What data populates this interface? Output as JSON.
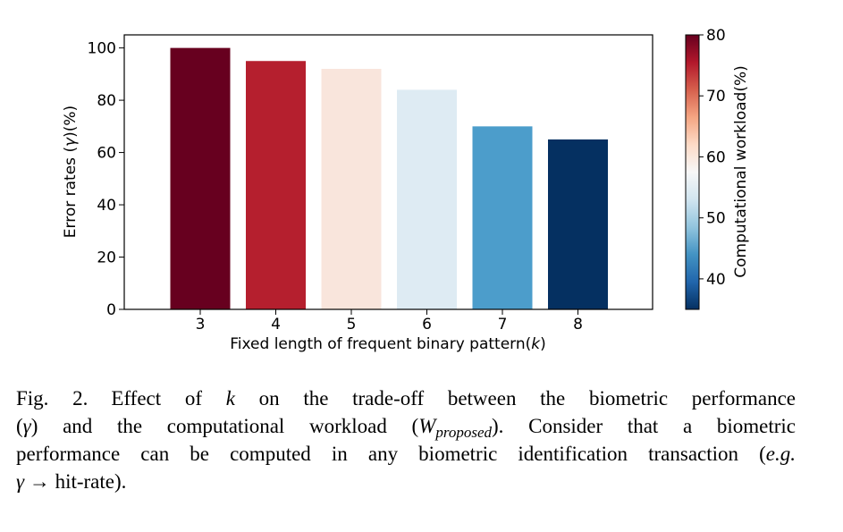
{
  "chart_data": {
    "type": "bar",
    "categories": [
      "3",
      "4",
      "5",
      "6",
      "7",
      "8"
    ],
    "values": [
      100,
      95,
      92,
      84,
      70,
      65
    ],
    "bar_colors": [
      "#67001f",
      "#b51f2e",
      "#f9e5dc",
      "#deebf3",
      "#4c9dcb",
      "#053061"
    ],
    "xlabel_prefix": "Fixed length of frequent binary pattern(",
    "xlabel_var": "k",
    "xlabel_suffix": ")",
    "ylabel_prefix": "Error rates (",
    "ylabel_var": "γ",
    "ylabel_suffix": ")(%)",
    "ylim": [
      0,
      105
    ],
    "yticks": [
      0,
      20,
      40,
      60,
      80,
      100
    ],
    "grid": false,
    "colorbar": {
      "label": "Computational workload(%)",
      "range": [
        35,
        80
      ],
      "ticks": [
        40,
        50,
        60,
        70,
        80
      ],
      "colormap": "RdBu_r",
      "colormap_stops": [
        "#053061",
        "#2166ac",
        "#4393c3",
        "#92c5de",
        "#d1e5f0",
        "#f7f7f7",
        "#fddbc7",
        "#f4a582",
        "#d6604d",
        "#b2182b",
        "#67001f"
      ]
    }
  },
  "caption": {
    "fig_label": "Fig. 2.",
    "l1_a": "Effect of ",
    "l1_k": "k",
    "l1_b": " on the trade-off between the biometric performance",
    "l2_a": "(",
    "l2_gamma": "γ",
    "l2_b": ") and the computational workload (",
    "l2_W": "W",
    "l2_sub": "proposed",
    "l2_c": "). Consider that a biometric",
    "l3_a": "performance can be computed in any biometric identification transaction (",
    "l3_eg": "e.g.",
    "l4_gamma": "γ",
    "l4_b": " → hit-rate)."
  }
}
